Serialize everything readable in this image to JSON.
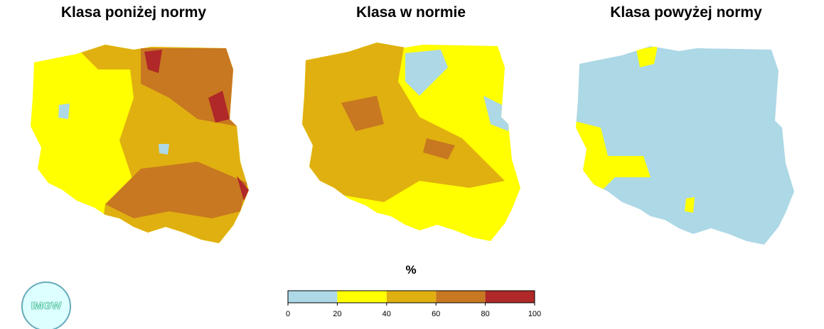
{
  "maps": [
    {
      "title": "Klasa poniżej normy"
    },
    {
      "title": "Klasa w normie"
    },
    {
      "title": "Klasa powyżej normy"
    }
  ],
  "legend": {
    "title": "%",
    "bins": [
      0,
      20,
      40,
      60,
      80,
      100
    ],
    "colors": [
      "#add8e6",
      "#ffff00",
      "#e0b010",
      "#c87820",
      "#b02828"
    ]
  },
  "logo": {
    "text": "IMGW"
  }
}
